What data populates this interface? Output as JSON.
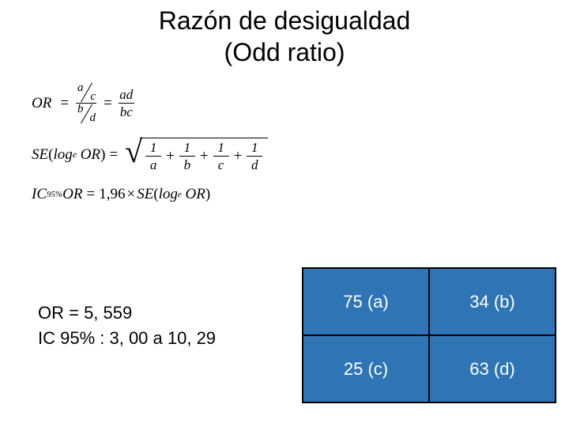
{
  "title_line1": "Razón de desigualdad",
  "title_line2": "(Odd ratio)",
  "formulas": {
    "or_label": "OR",
    "eq": "=",
    "a": "a",
    "b": "b",
    "c": "c",
    "d": "d",
    "ad": "ad",
    "bc": "bc",
    "se_label": "SE",
    "log_label": "log",
    "log_sub": "e",
    "or_inner": "OR",
    "one": "1",
    "plus": "+",
    "ic_label": "IC",
    "ic_sub": "95%",
    "ic_mult": "1,96",
    "times": "×"
  },
  "results": {
    "line1": "OR = 5, 559",
    "line2": "IC 95% : 3, 00 a 10, 29"
  },
  "table": {
    "cell_bg": "#2f75b5",
    "cell_text_color": "#ffffff",
    "border_color": "#000000",
    "cells": {
      "a": "75 (a)",
      "b": "34 (b)",
      "c": "25 (c)",
      "d": "63 (d)"
    }
  }
}
